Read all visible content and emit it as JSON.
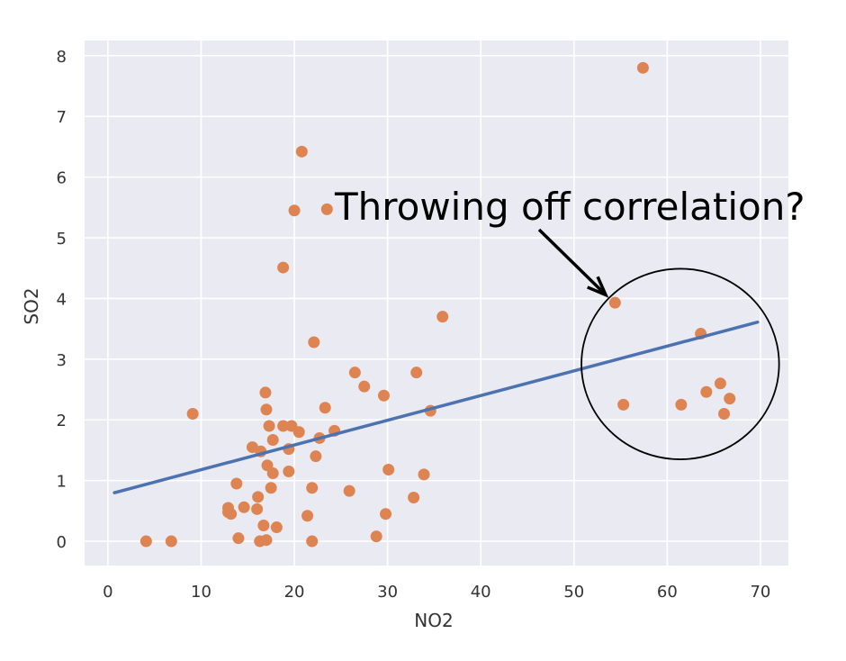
{
  "chart_data": {
    "type": "scatter",
    "title": "",
    "xlabel": "NO2",
    "ylabel": "SO2",
    "xlim": [
      -2.5,
      73
    ],
    "ylim": [
      -0.4,
      8.25
    ],
    "xticks": [
      0,
      10,
      20,
      30,
      40,
      50,
      60,
      70
    ],
    "yticks": [
      0,
      1,
      2,
      3,
      4,
      5,
      6,
      7,
      8
    ],
    "grid": true,
    "background": "#eaeaf2",
    "grid_color": "#ffffff",
    "point_color": "#dd8452",
    "line_color": "#4c72b0",
    "points": [
      {
        "x": 4.1,
        "y": 0.0
      },
      {
        "x": 6.8,
        "y": 0.0
      },
      {
        "x": 9.1,
        "y": 2.1
      },
      {
        "x": 12.9,
        "y": 0.55
      },
      {
        "x": 12.9,
        "y": 0.48
      },
      {
        "x": 13.2,
        "y": 0.45
      },
      {
        "x": 13.8,
        "y": 0.95
      },
      {
        "x": 14.0,
        "y": 0.05
      },
      {
        "x": 14.6,
        "y": 0.56
      },
      {
        "x": 15.5,
        "y": 1.55
      },
      {
        "x": 16.0,
        "y": 0.53
      },
      {
        "x": 16.1,
        "y": 0.73
      },
      {
        "x": 16.3,
        "y": 0.0
      },
      {
        "x": 16.4,
        "y": 1.48
      },
      {
        "x": 16.7,
        "y": 0.26
      },
      {
        "x": 16.9,
        "y": 2.45
      },
      {
        "x": 17.0,
        "y": 2.17
      },
      {
        "x": 17.0,
        "y": 0.02
      },
      {
        "x": 17.1,
        "y": 1.25
      },
      {
        "x": 17.3,
        "y": 1.9
      },
      {
        "x": 17.5,
        "y": 0.88
      },
      {
        "x": 17.7,
        "y": 1.12
      },
      {
        "x": 17.7,
        "y": 1.67
      },
      {
        "x": 18.1,
        "y": 0.23
      },
      {
        "x": 18.8,
        "y": 4.51
      },
      {
        "x": 18.8,
        "y": 1.9
      },
      {
        "x": 19.4,
        "y": 1.52
      },
      {
        "x": 19.4,
        "y": 1.15
      },
      {
        "x": 19.7,
        "y": 1.9
      },
      {
        "x": 20.0,
        "y": 5.45
      },
      {
        "x": 20.5,
        "y": 1.8
      },
      {
        "x": 20.8,
        "y": 6.42
      },
      {
        "x": 21.4,
        "y": 0.42
      },
      {
        "x": 21.9,
        "y": 0.0
      },
      {
        "x": 21.9,
        "y": 0.88
      },
      {
        "x": 22.1,
        "y": 3.28
      },
      {
        "x": 22.3,
        "y": 1.4
      },
      {
        "x": 22.7,
        "y": 1.7
      },
      {
        "x": 23.3,
        "y": 2.2
      },
      {
        "x": 23.5,
        "y": 5.47
      },
      {
        "x": 24.3,
        "y": 1.82
      },
      {
        "x": 25.9,
        "y": 0.83
      },
      {
        "x": 26.5,
        "y": 2.78
      },
      {
        "x": 27.5,
        "y": 2.55
      },
      {
        "x": 28.8,
        "y": 0.08
      },
      {
        "x": 29.6,
        "y": 2.4
      },
      {
        "x": 29.8,
        "y": 0.45
      },
      {
        "x": 30.1,
        "y": 1.18
      },
      {
        "x": 32.8,
        "y": 0.72
      },
      {
        "x": 33.1,
        "y": 2.78
      },
      {
        "x": 33.9,
        "y": 1.1
      },
      {
        "x": 34.6,
        "y": 2.15
      },
      {
        "x": 35.9,
        "y": 3.7
      },
      {
        "x": 54.4,
        "y": 3.93
      },
      {
        "x": 55.3,
        "y": 2.25
      },
      {
        "x": 57.4,
        "y": 7.8
      },
      {
        "x": 61.5,
        "y": 2.25
      },
      {
        "x": 63.6,
        "y": 3.42
      },
      {
        "x": 64.2,
        "y": 2.46
      },
      {
        "x": 65.7,
        "y": 2.6
      },
      {
        "x": 66.1,
        "y": 2.1
      },
      {
        "x": 66.7,
        "y": 2.35
      }
    ],
    "trend_line": {
      "x": [
        0.7,
        69.7
      ],
      "y": [
        0.8,
        3.61
      ]
    },
    "annotation": {
      "text": "Throwing off correlation?",
      "arrow_to": {
        "x": 53.4,
        "y": 4.06
      },
      "circle": {
        "cx": 61.4,
        "cy": 2.92,
        "rx": 10.6,
        "ry": 1.57
      }
    }
  }
}
